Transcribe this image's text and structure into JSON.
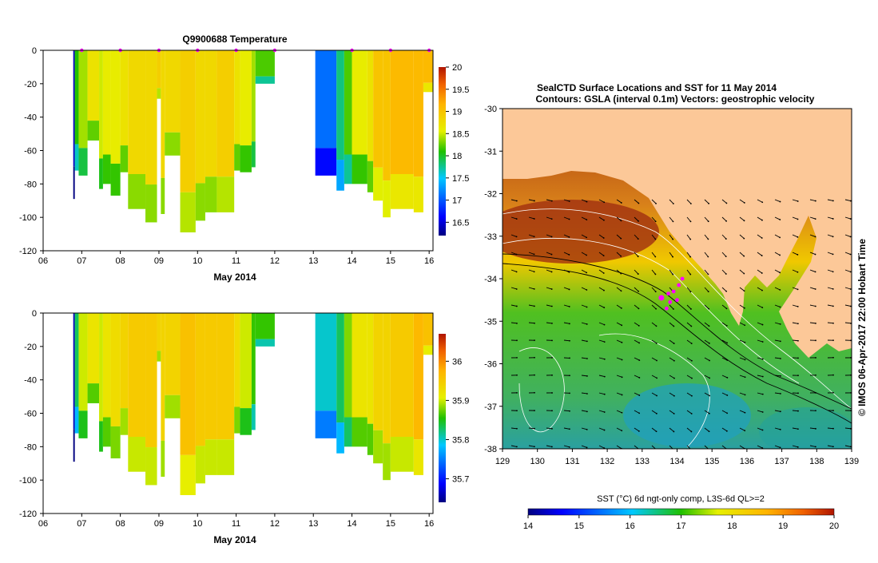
{
  "chart_data": [
    {
      "type": "heatmap",
      "name": "temperature-section",
      "title": "Q9900688  Temperature",
      "xlabel": "May 2014",
      "x_ticks": [
        "06",
        "07",
        "08",
        "09",
        "10",
        "11",
        "12",
        "13",
        "14",
        "15",
        "16"
      ],
      "x_range": [
        6,
        16.1
      ],
      "y_ticks": [
        "0",
        "-20",
        "-40",
        "-60",
        "-80",
        "-100",
        "-120"
      ],
      "y_range": [
        -120,
        0
      ],
      "colorbar_ticks": [
        "20",
        "19.5",
        "19",
        "18.5",
        "18",
        "17.5",
        "17",
        "16.5"
      ],
      "colorbar_range": [
        16.2,
        20.0
      ],
      "profile_markers_day": [
        7.0,
        8.0,
        9.0,
        10.0,
        11.0,
        12.0,
        14.0,
        15.0,
        16.0
      ],
      "profiles": [
        {
          "x0": 6.78,
          "x1": 6.82,
          "depth": -89,
          "value": 16.4
        },
        {
          "x0": 6.82,
          "x1": 6.92,
          "depth": -72,
          "value": 18.1
        },
        {
          "x0": 6.92,
          "x1": 7.15,
          "depth": -75,
          "value": 18.4
        },
        {
          "x0": 7.15,
          "x1": 7.45,
          "depth": -54,
          "value": 18.7
        },
        {
          "x0": 7.45,
          "x1": 7.55,
          "depth": -83,
          "value": 18.5
        },
        {
          "x0": 7.55,
          "x1": 7.75,
          "depth": -80,
          "value": 18.6
        },
        {
          "x0": 7.75,
          "x1": 8.0,
          "depth": -87,
          "value": 18.6
        },
        {
          "x0": 8.0,
          "x1": 8.2,
          "depth": -73,
          "value": 18.7
        },
        {
          "x0": 8.2,
          "x1": 8.65,
          "depth": -95,
          "value": 18.8
        },
        {
          "x0": 8.65,
          "x1": 8.95,
          "depth": -103,
          "value": 18.8
        },
        {
          "x0": 8.95,
          "x1": 9.05,
          "depth": -29,
          "value": 18.9
        },
        {
          "x0": 9.05,
          "x1": 9.15,
          "depth": -98,
          "value": 18.8
        },
        {
          "x0": 9.15,
          "x1": 9.55,
          "depth": -63,
          "value": 18.8
        },
        {
          "x0": 9.55,
          "x1": 9.95,
          "depth": -109,
          "value": 18.9
        },
        {
          "x0": 9.95,
          "x1": 10.2,
          "depth": -102,
          "value": 18.8
        },
        {
          "x0": 10.2,
          "x1": 10.5,
          "depth": -97,
          "value": 18.8
        },
        {
          "x0": 10.5,
          "x1": 10.95,
          "depth": -97,
          "value": 18.9
        },
        {
          "x0": 10.95,
          "x1": 11.1,
          "depth": -72,
          "value": 18.7
        },
        {
          "x0": 11.1,
          "x1": 11.4,
          "depth": -73,
          "value": 18.6
        },
        {
          "x0": 11.4,
          "x1": 11.5,
          "depth": -70,
          "value": 18.4
        },
        {
          "x0": 11.5,
          "x1": 12.0,
          "depth": -20,
          "value": 18.2
        },
        {
          "x0": 13.05,
          "x1": 13.6,
          "depth": -75,
          "value": 17.1
        },
        {
          "x0": 13.6,
          "x1": 13.8,
          "depth": -84,
          "value": 17.8
        },
        {
          "x0": 13.8,
          "x1": 14.0,
          "depth": -80,
          "value": 18.2
        },
        {
          "x0": 14.0,
          "x1": 14.4,
          "depth": -80,
          "value": 18.6
        },
        {
          "x0": 14.4,
          "x1": 14.55,
          "depth": -85,
          "value": 18.7
        },
        {
          "x0": 14.55,
          "x1": 14.8,
          "depth": -90,
          "value": 19.0
        },
        {
          "x0": 14.8,
          "x1": 15.0,
          "depth": -100,
          "value": 19.0
        },
        {
          "x0": 15.0,
          "x1": 15.6,
          "depth": -95,
          "value": 19.1
        },
        {
          "x0": 15.6,
          "x1": 15.85,
          "depth": -97,
          "value": 19.1
        },
        {
          "x0": 15.85,
          "x1": 16.1,
          "depth": -25,
          "value": 19.1
        }
      ]
    },
    {
      "type": "heatmap",
      "name": "salinity-section",
      "title": "",
      "xlabel": "May 2014",
      "x_ticks": [
        "06",
        "07",
        "08",
        "09",
        "10",
        "11",
        "12",
        "13",
        "14",
        "15",
        "16"
      ],
      "x_range": [
        6,
        16.1
      ],
      "y_ticks": [
        "0",
        "-20",
        "-40",
        "-60",
        "-80",
        "-100",
        "-120"
      ],
      "y_range": [
        -120,
        0
      ],
      "colorbar_ticks": [
        "36",
        "35.9",
        "35.8",
        "35.7"
      ],
      "colorbar_range": [
        35.64,
        36.07
      ],
      "profiles": [
        {
          "x0": 6.78,
          "x1": 6.82,
          "depth": -89,
          "value": 35.66
        },
        {
          "x0": 6.82,
          "x1": 6.92,
          "depth": -72,
          "value": 35.83
        },
        {
          "x0": 6.92,
          "x1": 7.15,
          "depth": -75,
          "value": 35.9
        },
        {
          "x0": 7.15,
          "x1": 7.45,
          "depth": -54,
          "value": 35.92
        },
        {
          "x0": 7.45,
          "x1": 7.55,
          "depth": -83,
          "value": 35.9
        },
        {
          "x0": 7.55,
          "x1": 7.75,
          "depth": -80,
          "value": 35.92
        },
        {
          "x0": 7.75,
          "x1": 8.0,
          "depth": -87,
          "value": 35.93
        },
        {
          "x0": 8.0,
          "x1": 8.2,
          "depth": -73,
          "value": 35.94
        },
        {
          "x0": 8.2,
          "x1": 8.65,
          "depth": -95,
          "value": 35.95
        },
        {
          "x0": 8.65,
          "x1": 8.95,
          "depth": -103,
          "value": 35.95
        },
        {
          "x0": 8.95,
          "x1": 9.05,
          "depth": -29,
          "value": 35.94
        },
        {
          "x0": 9.05,
          "x1": 9.15,
          "depth": -98,
          "value": 35.94
        },
        {
          "x0": 9.15,
          "x1": 9.55,
          "depth": -63,
          "value": 35.94
        },
        {
          "x0": 9.55,
          "x1": 9.95,
          "depth": -109,
          "value": 35.96
        },
        {
          "x0": 9.95,
          "x1": 10.2,
          "depth": -102,
          "value": 35.95
        },
        {
          "x0": 10.2,
          "x1": 10.5,
          "depth": -97,
          "value": 35.95
        },
        {
          "x0": 10.5,
          "x1": 10.95,
          "depth": -97,
          "value": 35.95
        },
        {
          "x0": 10.95,
          "x1": 11.1,
          "depth": -72,
          "value": 35.93
        },
        {
          "x0": 11.1,
          "x1": 11.4,
          "depth": -73,
          "value": 35.9
        },
        {
          "x0": 11.4,
          "x1": 11.5,
          "depth": -70,
          "value": 35.86
        },
        {
          "x0": 11.5,
          "x1": 12.0,
          "depth": -20,
          "value": 35.86
        },
        {
          "x0": 13.05,
          "x1": 13.6,
          "depth": -75,
          "value": 35.8
        },
        {
          "x0": 13.6,
          "x1": 13.8,
          "depth": -84,
          "value": 35.83
        },
        {
          "x0": 13.8,
          "x1": 14.0,
          "depth": -80,
          "value": 35.88
        },
        {
          "x0": 14.0,
          "x1": 14.4,
          "depth": -80,
          "value": 35.92
        },
        {
          "x0": 14.4,
          "x1": 14.55,
          "depth": -85,
          "value": 35.92
        },
        {
          "x0": 14.55,
          "x1": 14.8,
          "depth": -90,
          "value": 35.94
        },
        {
          "x0": 14.8,
          "x1": 15.0,
          "depth": -100,
          "value": 35.94
        },
        {
          "x0": 15.0,
          "x1": 15.6,
          "depth": -95,
          "value": 35.95
        },
        {
          "x0": 15.6,
          "x1": 15.85,
          "depth": -97,
          "value": 35.97
        },
        {
          "x0": 15.85,
          "x1": 16.1,
          "depth": -25,
          "value": 35.96
        }
      ]
    },
    {
      "type": "heatmap",
      "name": "sst-map",
      "title": "SealCTD Surface Locations and SST for 11 May 2014",
      "subtitle": "Contours: GSLA (interval 0.1m) Vectors: geostrophic velocity",
      "x_ticks": [
        "129",
        "130",
        "131",
        "132",
        "133",
        "134",
        "135",
        "136",
        "137",
        "138",
        "139"
      ],
      "x_range": [
        129,
        139
      ],
      "y_ticks": [
        "-30",
        "-31",
        "-32",
        "-33",
        "-34",
        "-35",
        "-36",
        "-37",
        "-38"
      ],
      "y_range": [
        -38,
        -30
      ],
      "side_label": "© IMOS 06-Apr-2017 22:00 Hobart Time",
      "colorbar_label": "SST (°C) 6d ngt-only comp, L3S-6d QL>=2",
      "colorbar_ticks": [
        "14",
        "15",
        "16",
        "17",
        "18",
        "19",
        "20"
      ],
      "colorbar_range": [
        14,
        20
      ],
      "seal_locations": [
        [
          133.55,
          -34.45
        ],
        [
          133.75,
          -34.35
        ],
        [
          133.9,
          -34.3
        ],
        [
          134.05,
          -34.15
        ],
        [
          134.15,
          -34.0
        ],
        [
          133.8,
          -34.55
        ],
        [
          133.7,
          -34.7
        ],
        [
          134.0,
          -34.5
        ]
      ]
    }
  ],
  "colors": {
    "land": "#fcc898",
    "marker": "#ff00ff",
    "contour_gsla": "#ffffff",
    "bathymetry": "#000000"
  }
}
